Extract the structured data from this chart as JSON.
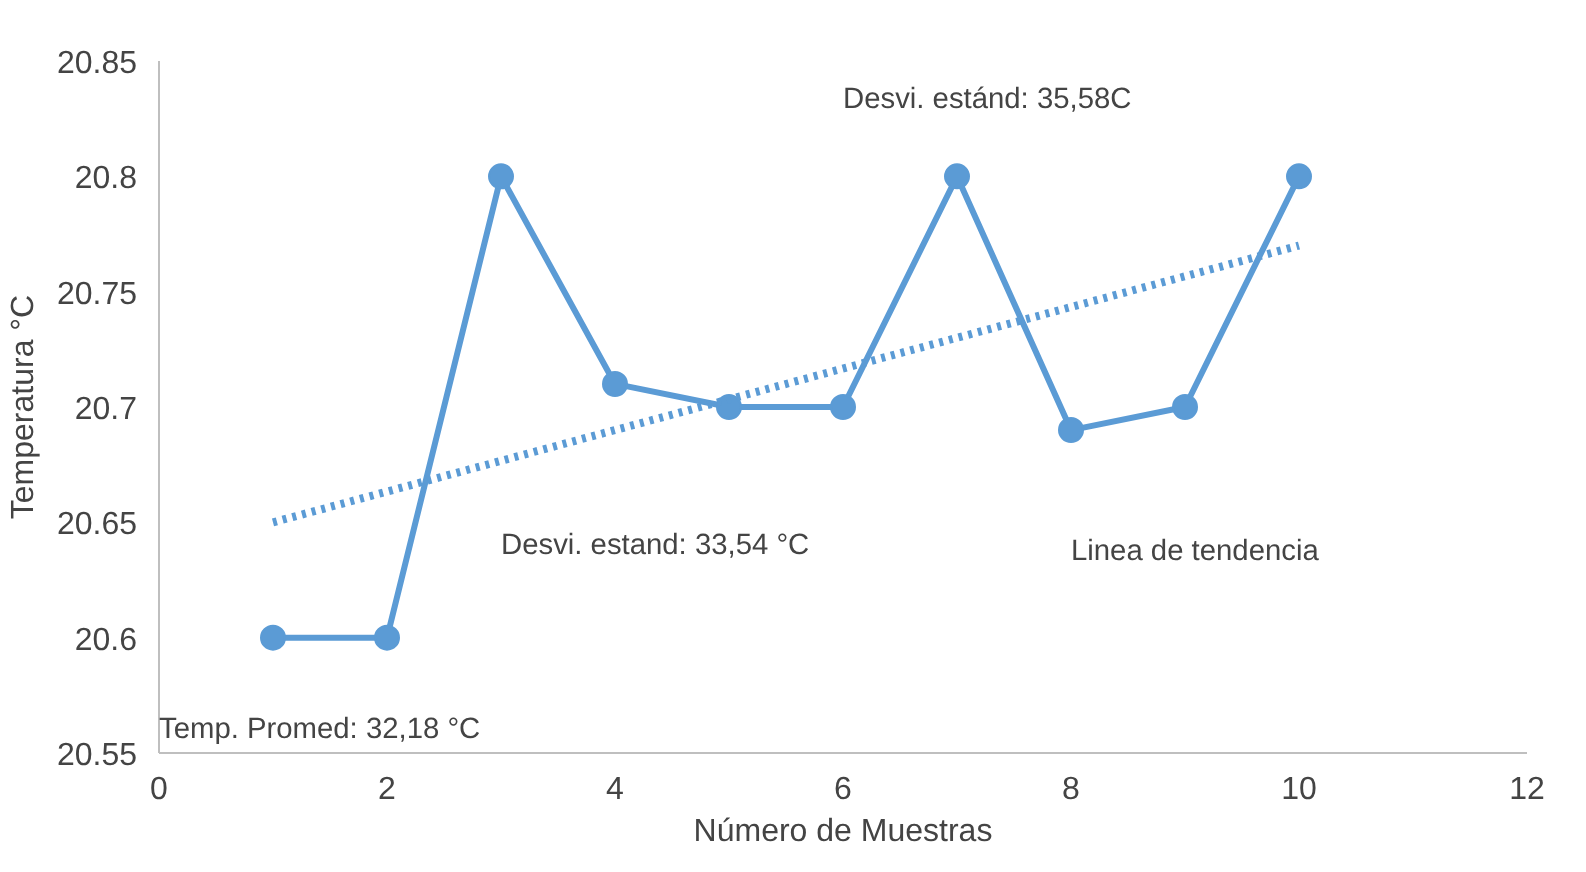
{
  "chart_data": {
    "type": "line",
    "xlabel": "Número de Muestras",
    "ylabel": "Temperatura °C",
    "xlim": [
      0,
      12
    ],
    "xticks": [
      0,
      2,
      4,
      6,
      8,
      10,
      12
    ],
    "ylim": [
      20.55,
      20.85
    ],
    "yticks": [
      20.55,
      20.6,
      20.65,
      20.7,
      20.75,
      20.8,
      20.85
    ],
    "grid": false,
    "marker": "circle",
    "line_style": "solid",
    "series": [
      {
        "color": "#5b9bd5",
        "x": [
          1,
          2,
          3,
          4,
          5,
          6,
          7,
          8,
          9,
          10
        ],
        "values": [
          20.6,
          20.6,
          20.8,
          20.71,
          20.7,
          20.7,
          20.8,
          20.69,
          20.7,
          20.8
        ]
      },
      {
        "type": "line",
        "color": "#5b9bd5",
        "marker": "none",
        "line_style": "dotted",
        "x": [
          1,
          10
        ],
        "values": [
          20.65,
          20.77
        ]
      }
    ],
    "annotations": [
      "Desvi. estánd: 35,58C",
      "Desvi. estand: 33,54 °C",
      "Linea de tendencia",
      "Temp. Promed: 32,18 °C"
    ]
  }
}
